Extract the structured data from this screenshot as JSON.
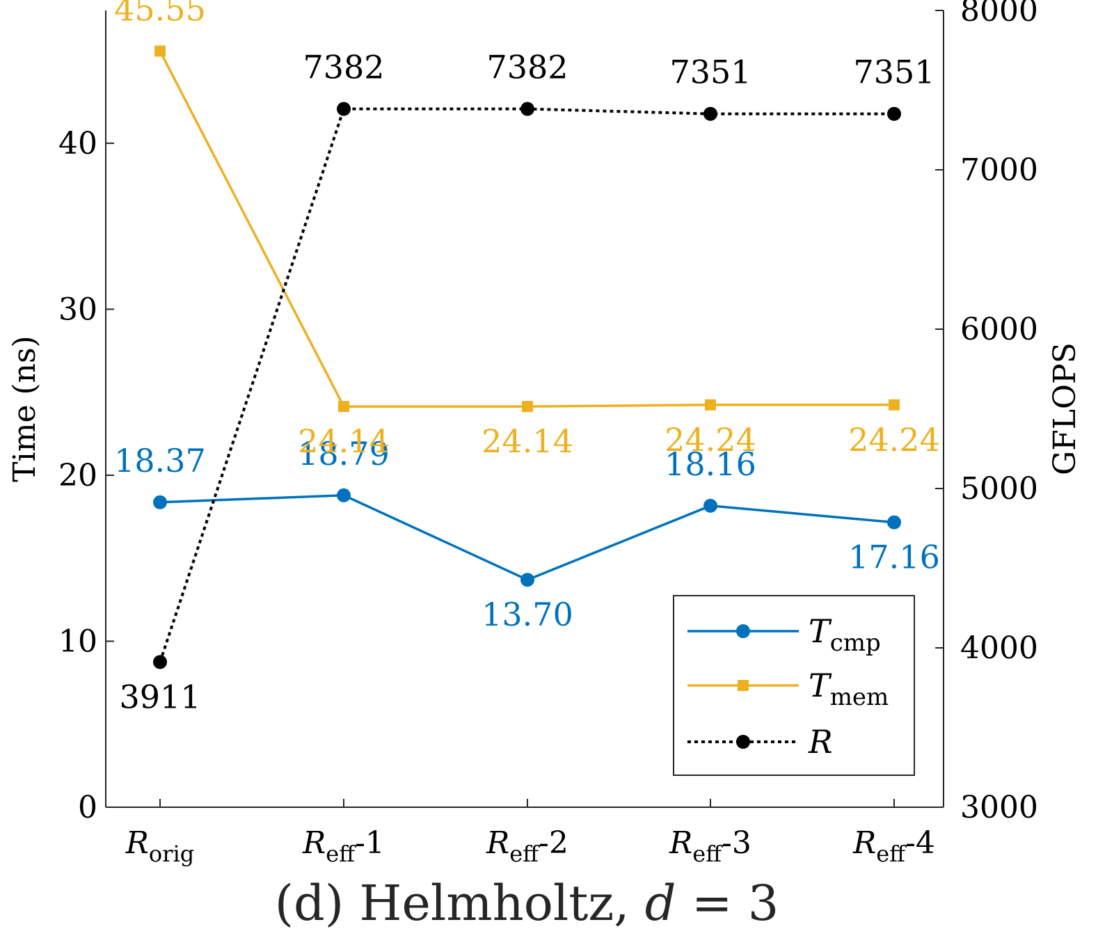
{
  "chart_data": {
    "type": "line",
    "title": "(d) Helmholtz, d = 3",
    "title_parts": {
      "prefix": "(d) Helmholtz, ",
      "var": "d",
      "suffix": " = 3"
    },
    "categories": [
      {
        "base": "R",
        "sub": "orig",
        "suffix": ""
      },
      {
        "base": "R",
        "sub": "eff",
        "suffix": "-1"
      },
      {
        "base": "R",
        "sub": "eff",
        "suffix": "-2"
      },
      {
        "base": "R",
        "sub": "eff",
        "suffix": "-3"
      },
      {
        "base": "R",
        "sub": "eff",
        "suffix": "-4"
      }
    ],
    "ylabel": "Time (ns)",
    "ylabel_right": "GFLOPS",
    "ylim": [
      0,
      48
    ],
    "yticks": [
      0,
      10,
      20,
      30,
      40
    ],
    "ylim_right": [
      3000,
      8000
    ],
    "yticks_right": [
      3000,
      4000,
      5000,
      6000,
      7000,
      8000
    ],
    "series": [
      {
        "name": "T_cmp",
        "legend_base": "T",
        "legend_sub": "cmp",
        "axis": "left",
        "color": "#0072BD",
        "marker": "circle",
        "dash": "solid",
        "values": [
          18.37,
          18.79,
          13.7,
          18.16,
          17.16
        ],
        "labels": [
          "18.37",
          "18.79",
          "13.70",
          "18.16",
          "17.16"
        ],
        "label_pos": [
          "above",
          "above",
          "below",
          "above",
          "below"
        ]
      },
      {
        "name": "T_mem",
        "legend_base": "T",
        "legend_sub": "mem",
        "axis": "left",
        "color": "#EDB120",
        "marker": "square",
        "dash": "solid",
        "values": [
          45.55,
          24.14,
          24.14,
          24.24,
          24.24
        ],
        "labels": [
          "45.55",
          "24.14",
          "24.14",
          "24.24",
          "24.24"
        ],
        "label_pos": [
          "above",
          "below",
          "below",
          "below",
          "below"
        ]
      },
      {
        "name": "R",
        "legend_base": "R",
        "legend_sub": "",
        "axis": "right",
        "color": "#000000",
        "marker": "circle",
        "dash": "dotted",
        "values": [
          3911,
          7382,
          7382,
          7351,
          7351
        ],
        "labels": [
          "3911",
          "7382",
          "7382",
          "7351",
          "7351"
        ],
        "label_pos": [
          "below",
          "above",
          "above",
          "above",
          "above"
        ]
      }
    ],
    "legend_position": "bottom-right",
    "grid": false
  }
}
